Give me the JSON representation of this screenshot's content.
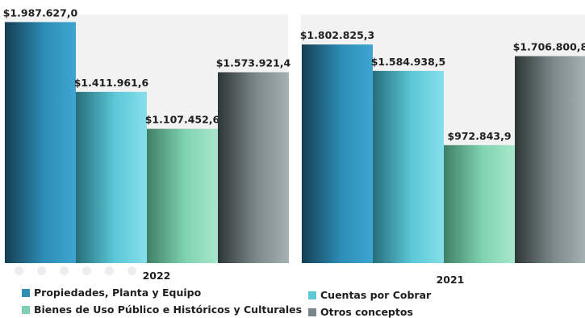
{
  "chart_data": {
    "type": "bar",
    "ylim": [
      0,
      2050000
    ],
    "groups": [
      {
        "label": "2022",
        "values": [
          1987627.0,
          1411961.6,
          1107452.6,
          1573921.4
        ],
        "labels": [
          "$1.987.627,0",
          "$1.411.961,6",
          "$1.107.452,6",
          "$1.573.921,4"
        ]
      },
      {
        "label": "2021",
        "values": [
          1802825.3,
          1584938.5,
          972843.9,
          1706800.8
        ],
        "labels": [
          "$1.802.825,3",
          "$1.584.938,5",
          "$972.843,9",
          "$1.706.800,8"
        ]
      }
    ],
    "series": [
      {
        "name": "Propiedades, Planta y Equipo",
        "color": "#2e8fb5"
      },
      {
        "name": "Cuentas por Cobrar",
        "color": "#5ec9d6"
      },
      {
        "name": "Bienes de Uso Público e Históricos y Culturales",
        "color": "#7fd0b0"
      },
      {
        "name": "Otros conceptos",
        "color": "#7a8689"
      }
    ],
    "legend": "bottom"
  }
}
